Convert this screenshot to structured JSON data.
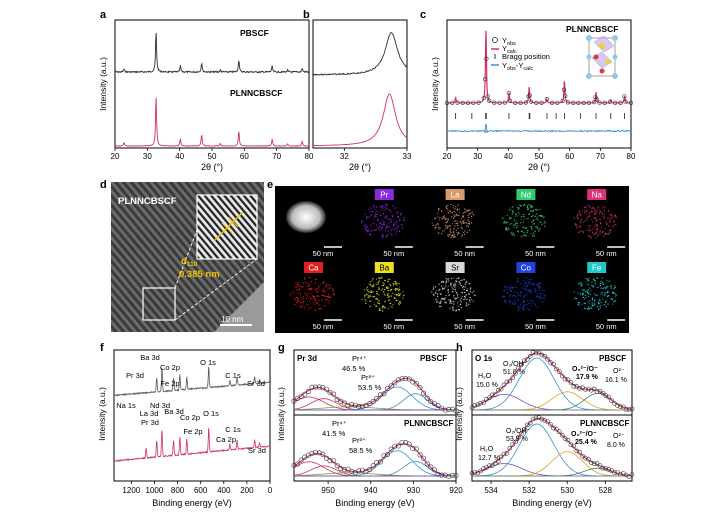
{
  "panel_letters": {
    "a": "a",
    "b": "b",
    "c": "c",
    "d": "d",
    "e": "e",
    "f": "f",
    "g": "g",
    "h": "h"
  },
  "axis_labels": {
    "intensity": "Intensity (a.u.)",
    "two_theta": "2θ (°)",
    "binding_energy": "Binding energy (eV)"
  },
  "panel_a": {
    "sample_top": "PBSCF",
    "sample_bottom": "PLNNCBSCF",
    "x_ticks": [
      "20",
      "30",
      "40",
      "50",
      "60",
      "70",
      "80"
    ],
    "colors": {
      "top": "#2e2e2e",
      "bottom": "#d2306b"
    }
  },
  "panel_b": {
    "x_ticks": [
      "32",
      "33"
    ]
  },
  "panel_c": {
    "title": "PLNNCBSCF",
    "legend": {
      "obs": "Y",
      "obs_sub": "obs",
      "calc": "Y",
      "calc_sub": "calc",
      "bragg": "Bragg position",
      "diff_a": "Y",
      "diff_a_sub": "obs",
      "diff_b": "-Y",
      "diff_b_sub": "calc"
    },
    "x_ticks": [
      "20",
      "30",
      "40",
      "50",
      "60",
      "70",
      "80"
    ],
    "colors": {
      "obs": "#2b2b2b",
      "calc": "#d2306b",
      "bragg": "#333333",
      "diff": "#3a8fd8"
    }
  },
  "panel_d": {
    "label": "PLNNCBSCF",
    "d_spacing_main": "d",
    "d_spacing_sub": "110",
    "d_value": "0.385 nm",
    "scale": "10 nm"
  },
  "panel_e": {
    "tiles": [
      {
        "element": "",
        "scale": "50 nm",
        "color": "#dddddd"
      },
      {
        "element": "Pr",
        "scale": "50 nm",
        "color": "#8a2be2"
      },
      {
        "element": "La",
        "scale": "50 nm",
        "color": "#d99a6c"
      },
      {
        "element": "Nd",
        "scale": "50 nm",
        "color": "#2ecc71"
      },
      {
        "element": "Na",
        "scale": "50 nm",
        "color": "#e0307a"
      },
      {
        "element": "Ca",
        "scale": "50 nm",
        "color": "#e02020"
      },
      {
        "element": "Ba",
        "scale": "50 nm",
        "color": "#e8e020"
      },
      {
        "element": "Sr",
        "scale": "50 nm",
        "color": "#d8d8d8"
      },
      {
        "element": "Co",
        "scale": "50 nm",
        "color": "#2040e0"
      },
      {
        "element": "Fe",
        "scale": "50 nm",
        "color": "#20c8c8"
      }
    ]
  },
  "panel_f": {
    "x_ticks": [
      "1200",
      "1000",
      "800",
      "600",
      "400",
      "200",
      "0"
    ],
    "top_labels": [
      "Ba 3d",
      "Co 2p",
      "O 1s",
      "Pr 3d",
      "Fe 2p",
      "C 1s",
      "Sr 3d"
    ],
    "bottom_labels": [
      "Na 1s",
      "Nd 3d",
      "La 3d",
      "Ba 3d",
      "Co 2p",
      "O 1s",
      "Pr 3d",
      "Fe 2p",
      "C 1s",
      "Ca 2p",
      "Sr 3d"
    ]
  },
  "panel_g": {
    "title": "Pr 3d",
    "top": {
      "sample": "PBSCF",
      "pr4_label": "Pr⁴⁺",
      "pr4_pct": "46.5 %",
      "pr3_label": "Pr³⁺",
      "pr3_pct": "53.5 %"
    },
    "bottom": {
      "sample": "PLNNCBSCF",
      "pr4_label": "Pr⁴⁺",
      "pr4_pct": "41.5 %",
      "pr3_label": "Pr³⁺",
      "pr3_pct": "58.5 %"
    },
    "x_ticks": [
      "950",
      "940",
      "930",
      "920"
    ]
  },
  "panel_h": {
    "title": "O 1s",
    "top": {
      "sample": "PBSCF",
      "h2o": "H₂O",
      "h2o_pct": "15.0 %",
      "oh": "O₂/OH⁻",
      "oh_pct": "51.0 %",
      "o22": "O₂²⁻/O⁻",
      "o22_pct": "17.9 %",
      "o2": "O²⁻",
      "o2_pct": "16.1 %"
    },
    "bottom": {
      "sample": "PLNNCBSCF",
      "h2o": "H₂O",
      "h2o_pct": "12.7 %",
      "oh": "O₂/OH⁻",
      "oh_pct": "53.9 %",
      "o22": "O₂²⁻/O⁻",
      "o22_pct": "25.4 %",
      "o2": "O²⁻",
      "o2_pct": "8.0 %"
    },
    "x_ticks": [
      "534",
      "532",
      "530",
      "528"
    ]
  }
}
